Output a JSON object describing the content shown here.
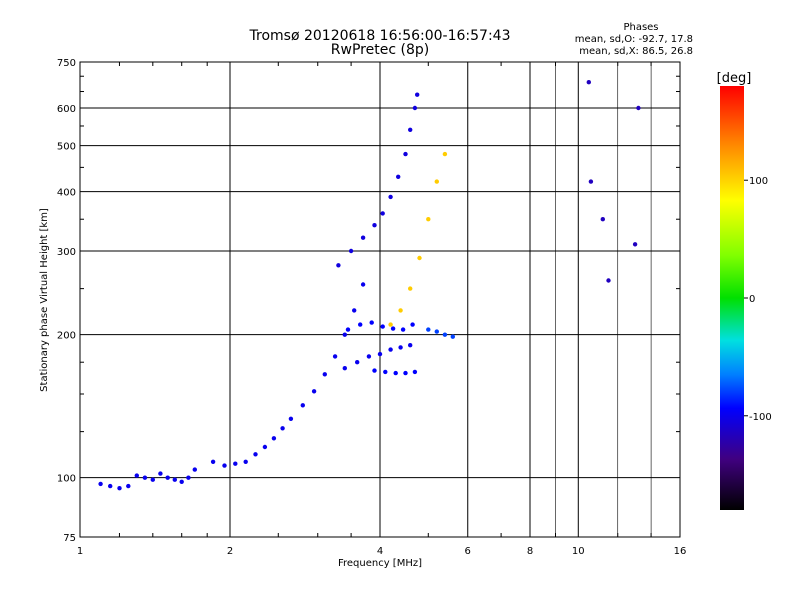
{
  "chart_data": {
    "type": "scatter",
    "title": "Tromsø 20120618 16:56:00-16:57:43",
    "subtitle": "RwPretec (8p)",
    "xlabel": "Frequency [MHz]",
    "ylabel": "Stationary phase Virtual Height [km]",
    "xscale": "log",
    "yscale": "log",
    "xlim": [
      1,
      16
    ],
    "ylim": [
      75,
      750
    ],
    "xticks": [
      1,
      2,
      4,
      6,
      8,
      10,
      16
    ],
    "xtick_labels": [
      "1",
      "2",
      "4",
      "6",
      "8",
      "10",
      "16"
    ],
    "yticks": [
      75,
      100,
      200,
      300,
      400,
      500,
      600,
      750
    ],
    "ytick_labels": [
      "75",
      "100",
      "200",
      "300",
      "400",
      "500",
      "600",
      "750"
    ],
    "grid": true,
    "legend": {
      "title": "Phases",
      "lines": [
        "mean, sd,O: -92.7, 17.8",
        "mean, sd,X: 86.5, 26.8"
      ]
    },
    "colorbar": {
      "label": "[deg]",
      "ticks": [
        100,
        0,
        -100
      ],
      "tick_labels": [
        "100",
        "0",
        "-100"
      ],
      "range": [
        -180,
        180
      ]
    },
    "traces": [
      {
        "name": "",
        "phase": -105,
        "x": [
          1.1,
          1.15,
          1.2,
          1.25,
          1.3,
          1.35,
          1.4,
          1.45,
          1.5,
          1.55,
          1.6,
          1.65,
          1.7
        ],
        "y": [
          97,
          96,
          95,
          96,
          101,
          100,
          99,
          102,
          100,
          99,
          98,
          100,
          104
        ]
      },
      {
        "name": "",
        "phase": -105,
        "x": [
          1.85,
          1.95,
          2.05,
          2.15,
          2.25,
          2.35,
          2.45,
          2.55,
          2.65,
          2.8,
          2.95,
          3.1,
          3.25,
          3.4,
          3.55,
          3.7
        ],
        "y": [
          108,
          106,
          107,
          108,
          112,
          116,
          121,
          127,
          133,
          142,
          152,
          165,
          180,
          200,
          225,
          255
        ]
      },
      {
        "name": "",
        "phase": -110,
        "x": [
          3.3,
          3.5,
          3.7,
          3.9,
          4.05,
          4.2,
          4.35,
          4.5,
          4.6,
          4.7,
          4.75
        ],
        "y": [
          280,
          300,
          320,
          340,
          360,
          390,
          430,
          480,
          540,
          600,
          640
        ]
      },
      {
        "name": "",
        "phase": -100,
        "x": [
          3.45,
          3.65,
          3.85,
          4.05,
          4.25,
          4.45,
          4.65
        ],
        "y": [
          205,
          210,
          212,
          208,
          206,
          205,
          210
        ]
      },
      {
        "name": "",
        "phase": -105,
        "x": [
          3.4,
          3.6,
          3.8,
          4.0,
          4.2,
          4.4,
          4.6
        ],
        "y": [
          170,
          175,
          180,
          182,
          186,
          188,
          190
        ]
      },
      {
        "name": "",
        "phase": -100,
        "x": [
          3.9,
          4.1,
          4.3,
          4.5,
          4.7
        ],
        "y": [
          168,
          167,
          166,
          166,
          167
        ]
      },
      {
        "name": "",
        "phase": 110,
        "x": [
          4.2,
          4.4,
          4.6,
          4.8,
          5.0,
          5.2,
          5.4
        ],
        "y": [
          210,
          225,
          250,
          290,
          350,
          420,
          480
        ]
      },
      {
        "name": "",
        "phase": -80,
        "x": [
          5.0,
          5.2,
          5.4,
          5.6
        ],
        "y": [
          205,
          203,
          200,
          198
        ]
      },
      {
        "name": "",
        "phase": -120,
        "x": [
          10.5,
          10.6,
          11.2,
          11.5,
          13.0,
          13.2
        ],
        "y": [
          680,
          420,
          350,
          260,
          310,
          600
        ]
      }
    ]
  }
}
